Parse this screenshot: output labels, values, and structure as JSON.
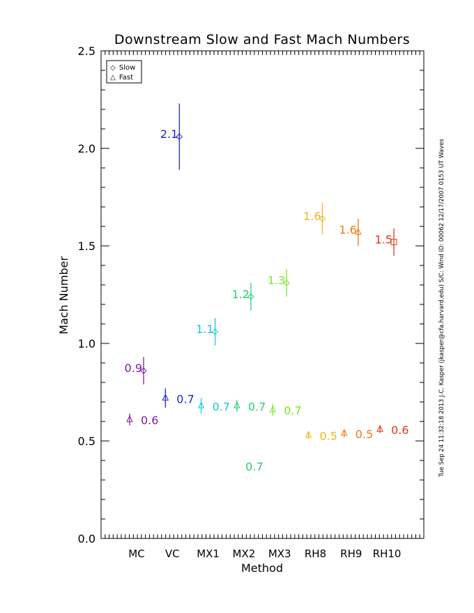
{
  "chart_data": {
    "type": "scatter",
    "title": "Downstream Slow and Fast Mach Numbers",
    "xlabel": "Method",
    "ylabel": "Mach Number",
    "ylim": [
      0.0,
      2.5
    ],
    "yticks": [
      "0.0",
      "0.5",
      "1.0",
      "1.5",
      "2.0",
      "2.5"
    ],
    "categories": [
      "MC",
      "VC",
      "MX1",
      "MX2",
      "MX3",
      "RH8",
      "RH9",
      "RH10"
    ],
    "grid": false,
    "legend": {
      "position": "top-left",
      "entries": [
        {
          "symbol": "◇",
          "label": "Slow"
        },
        {
          "symbol": "△",
          "label": "Fast"
        }
      ]
    },
    "side_text": "Tue Sep 24 11:32:18 2013   J.C. Kasper (jkasper@cfa.harvard.edu)   S/C: Wind ID: 00062 12/17/2007   0153 UT Waves",
    "series": [
      {
        "name": "Slow",
        "marker": "diamond",
        "points": [
          {
            "category": "MC",
            "y": 0.86,
            "err": 0.07,
            "color": "#7a1fa2",
            "label": "0.9"
          },
          {
            "category": "VC",
            "y": 2.06,
            "err": 0.17,
            "color": "#1c22d6",
            "label": "2.1"
          },
          {
            "category": "MX1",
            "y": 1.06,
            "err": 0.07,
            "color": "#16c6e0",
            "label": "1.1"
          },
          {
            "category": "MX2",
            "y": 1.24,
            "err": 0.07,
            "color": "#22d07a",
            "label": "1.2"
          },
          {
            "category": "MX3",
            "y": 1.31,
            "err": 0.07,
            "color": "#7ae82a",
            "label": "1.3"
          },
          {
            "category": "RH8",
            "y": 1.64,
            "err": 0.08,
            "color": "#f0b51c",
            "label": "1.6"
          },
          {
            "category": "RH9",
            "y": 1.57,
            "err": 0.07,
            "color": "#f07818",
            "label": "1.6",
            "marker": "triangle"
          },
          {
            "category": "RH10",
            "y": 1.52,
            "err": 0.07,
            "color": "#e8341a",
            "label": "1.5",
            "marker": "square"
          }
        ]
      },
      {
        "name": "Fast",
        "marker": "triangle",
        "points": [
          {
            "category": "MC",
            "y": 0.61,
            "err": 0.03,
            "color": "#7a1fa2",
            "label": "0.6"
          },
          {
            "category": "VC",
            "y": 0.72,
            "err": 0.05,
            "color": "#1c22d6",
            "label": "0.7"
          },
          {
            "category": "MX1",
            "y": 0.68,
            "err": 0.04,
            "color": "#16c6e0",
            "label": "0.7"
          },
          {
            "category": "MX2",
            "y": 0.68,
            "err": 0.03,
            "color": "#22d07a",
            "label": "0.7"
          },
          {
            "category": "MX3",
            "y": 0.66,
            "err": 0.03,
            "color": "#7ae82a",
            "label": "0.7"
          },
          {
            "category": "RH8",
            "y": 0.53,
            "err": 0.02,
            "color": "#f0b51c",
            "label": "0.5"
          },
          {
            "category": "RH9",
            "y": 0.54,
            "err": 0.02,
            "color": "#f07818",
            "label": "0.5"
          },
          {
            "category": "RH10",
            "y": 0.56,
            "err": 0.02,
            "color": "#e8341a",
            "label": "0.6"
          }
        ]
      }
    ],
    "annotations": [
      {
        "text": "0.7",
        "category": "MX2",
        "y": 0.37,
        "color": "#22d07a"
      }
    ]
  }
}
